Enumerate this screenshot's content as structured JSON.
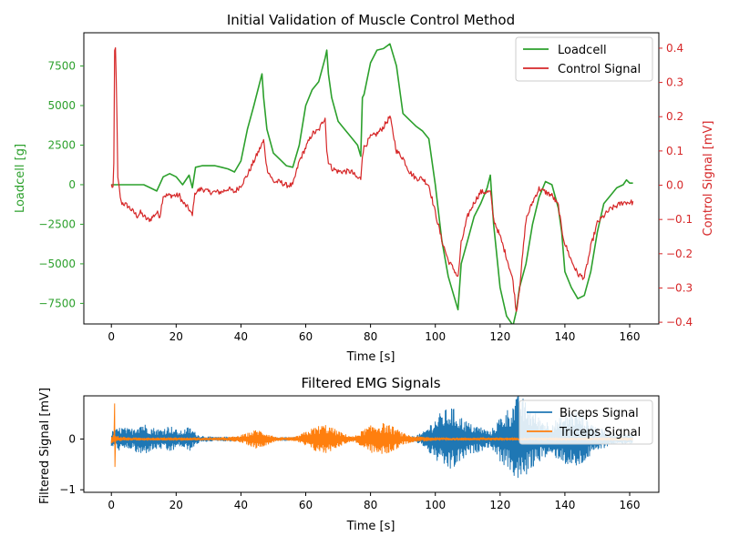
{
  "figure": {
    "colors": {
      "loadcell": "#2ca02c",
      "control": "#d62728",
      "biceps": "#1f77b4",
      "triceps": "#ff7f0e",
      "axis": "#000000"
    }
  },
  "chart_data": [
    {
      "type": "line",
      "title": "Initial Validation of Muscle Control Method",
      "xlabel": "Time [s]",
      "ylabel": "Loadcell [g]",
      "y2label": "Control Signal [mV]",
      "xlim": [
        -8.5,
        169
      ],
      "ylim": [
        -8800,
        9600
      ],
      "y2lim": [
        -0.405,
        0.445
      ],
      "xticks": [
        0,
        20,
        40,
        60,
        80,
        100,
        120,
        140,
        160
      ],
      "yticks": [
        -7500,
        -5000,
        -2500,
        0,
        2500,
        5000,
        7500
      ],
      "y2ticks": [
        -0.4,
        -0.3,
        -0.2,
        -0.1,
        0.0,
        0.1,
        0.2,
        0.3,
        0.4
      ],
      "yticklabels": [
        "−7500",
        "−5000",
        "−2500",
        "0",
        "2500",
        "5000",
        "7500"
      ],
      "y2ticklabels": [
        "−0.4",
        "−0.3",
        "−0.2",
        "−0.1",
        "0.0",
        "0.1",
        "0.2",
        "0.3",
        "0.4"
      ],
      "grid": false,
      "legend": "top-right",
      "series": [
        {
          "name": "Loadcell",
          "axis": "left",
          "x": [
            0,
            2,
            5,
            10,
            12,
            14,
            16,
            18,
            20,
            22,
            24,
            25,
            26,
            28,
            30,
            32,
            34,
            36,
            38,
            40,
            42,
            44,
            46,
            46.5,
            47,
            48,
            50,
            52,
            54,
            56,
            58,
            60,
            62,
            64,
            66,
            66.5,
            67,
            68,
            70,
            72,
            74,
            76,
            77,
            77.5,
            78,
            80,
            82,
            84,
            86,
            88,
            90,
            92,
            94,
            96,
            98,
            100,
            102,
            104,
            106,
            107,
            108,
            110,
            112,
            114,
            116,
            117,
            118,
            120,
            122,
            124,
            125,
            126,
            128,
            130,
            132,
            134,
            136,
            138,
            139,
            140,
            142,
            144,
            146,
            148,
            150,
            152,
            154,
            156,
            158,
            159,
            160,
            161
          ],
          "values": [
            0,
            0,
            0,
            0,
            -200,
            -400,
            500,
            700,
            500,
            0,
            600,
            -200,
            1100,
            1200,
            1200,
            1200,
            1100,
            1000,
            800,
            1500,
            3500,
            5000,
            6600,
            7000,
            5500,
            3500,
            2000,
            1600,
            1200,
            1100,
            2500,
            5000,
            6000,
            6500,
            8000,
            8500,
            7000,
            5500,
            4000,
            3500,
            3000,
            2500,
            1800,
            5500,
            5700,
            7700,
            8500,
            8600,
            8900,
            7500,
            4500,
            4100,
            3700,
            3400,
            2900,
            0,
            -3500,
            -5800,
            -7200,
            -7900,
            -5000,
            -3500,
            -2000,
            -1200,
            -200,
            600,
            -2500,
            -6500,
            -8300,
            -8900,
            -8000,
            -6500,
            -5000,
            -2500,
            -800,
            200,
            0,
            -1500,
            -3000,
            -5500,
            -6500,
            -7200,
            -7000,
            -5500,
            -3000,
            -1200,
            -700,
            -200,
            0,
            300,
            100,
            100
          ]
        },
        {
          "name": "Control Signal",
          "axis": "right",
          "x": [
            0,
            0.7,
            1,
            1.3,
            1.6,
            2,
            3,
            5,
            7,
            8,
            9,
            10,
            11,
            12,
            14,
            15,
            16,
            18,
            20,
            21,
            22,
            23,
            24,
            25,
            25.5,
            26,
            28,
            30,
            32,
            34,
            36,
            38,
            40,
            42,
            44,
            46,
            47,
            48,
            50,
            52,
            54,
            56,
            58,
            60,
            62,
            64,
            66,
            66.5,
            67,
            68,
            70,
            72,
            74,
            76,
            77,
            77.5,
            78,
            80,
            82,
            84,
            86,
            88,
            90,
            92,
            94,
            96,
            98,
            100,
            102,
            104,
            106,
            107,
            108,
            110,
            112,
            114,
            116,
            117,
            118,
            120,
            122,
            124,
            125,
            126,
            128,
            130,
            132,
            134,
            136,
            138,
            139,
            140,
            142,
            144,
            146,
            148,
            150,
            152,
            154,
            156,
            158,
            160,
            161
          ],
          "values": [
            0,
            -0.01,
            0.39,
            0.4,
            0.28,
            0.02,
            -0.05,
            -0.06,
            -0.08,
            -0.09,
            -0.08,
            -0.09,
            -0.1,
            -0.1,
            -0.08,
            -0.09,
            -0.03,
            -0.03,
            -0.03,
            -0.03,
            -0.05,
            -0.06,
            -0.07,
            -0.09,
            -0.04,
            -0.02,
            -0.01,
            -0.02,
            -0.02,
            -0.02,
            -0.01,
            -0.02,
            0.0,
            0.03,
            0.07,
            0.11,
            0.13,
            0.05,
            0.01,
            0.01,
            0.0,
            0.0,
            0.07,
            0.11,
            0.15,
            0.16,
            0.2,
            0.1,
            0.07,
            0.05,
            0.04,
            0.04,
            0.04,
            0.02,
            0.02,
            0.09,
            0.11,
            0.14,
            0.15,
            0.17,
            0.2,
            0.1,
            0.08,
            0.04,
            0.02,
            0.02,
            0.0,
            -0.08,
            -0.16,
            -0.22,
            -0.25,
            -0.27,
            -0.17,
            -0.09,
            -0.05,
            -0.02,
            -0.02,
            -0.02,
            -0.1,
            -0.15,
            -0.21,
            -0.28,
            -0.37,
            -0.3,
            -0.1,
            -0.05,
            -0.01,
            -0.02,
            -0.03,
            -0.06,
            -0.13,
            -0.17,
            -0.22,
            -0.26,
            -0.27,
            -0.18,
            -0.11,
            -0.09,
            -0.07,
            -0.06,
            -0.05,
            -0.05,
            -0.05
          ]
        }
      ]
    },
    {
      "type": "line",
      "title": "Filtered EMG Signals",
      "xlabel": "Time [s]",
      "ylabel": "Filtered Signal [mV]",
      "xlim": [
        -8.5,
        169
      ],
      "ylim": [
        -1.05,
        0.85
      ],
      "xticks": [
        0,
        20,
        40,
        60,
        80,
        100,
        120,
        140,
        160
      ],
      "yticks": [
        -1,
        0
      ],
      "yticklabels": [
        "−1",
        "0"
      ],
      "grid": false,
      "legend": "top-right",
      "series": [
        {
          "name": "Biceps Signal",
          "x": [
            0,
            3,
            6,
            9,
            12,
            15,
            18,
            21,
            24,
            27,
            30,
            33,
            36,
            39,
            42,
            45,
            48,
            51,
            54,
            57,
            60,
            63,
            66,
            69,
            72,
            75,
            78,
            81,
            84,
            87,
            90,
            93,
            96,
            99,
            102,
            105,
            108,
            111,
            114,
            117,
            120,
            123,
            126,
            129,
            132,
            135,
            138,
            141,
            144,
            147,
            150,
            153,
            156,
            159,
            161
          ],
          "envelope": [
            0.15,
            0.25,
            0.2,
            0.35,
            0.25,
            0.2,
            0.28,
            0.15,
            0.25,
            0.08,
            0.05,
            0.04,
            0.05,
            0.05,
            0.03,
            0.02,
            0.02,
            0.02,
            0.02,
            0.02,
            0.02,
            0.02,
            0.02,
            0.02,
            0.02,
            0.02,
            0.02,
            0.02,
            0.02,
            0.02,
            0.04,
            0.06,
            0.12,
            0.35,
            0.55,
            0.65,
            0.45,
            0.3,
            0.25,
            0.15,
            0.45,
            0.65,
            0.9,
            0.65,
            0.45,
            0.35,
            0.4,
            0.55,
            0.6,
            0.4,
            0.25,
            0.15,
            0.1,
            0.1,
            0.1
          ]
        },
        {
          "name": "Triceps Signal",
          "x": [
            0,
            3,
            6,
            9,
            12,
            15,
            18,
            21,
            24,
            27,
            30,
            33,
            36,
            39,
            42,
            45,
            48,
            51,
            54,
            57,
            60,
            63,
            66,
            69,
            72,
            75,
            78,
            81,
            84,
            87,
            90,
            93,
            96,
            99,
            102,
            105,
            108,
            111,
            114,
            117,
            120,
            123,
            126,
            129,
            132,
            135,
            138,
            141,
            144,
            147,
            150,
            153,
            156,
            159,
            161
          ],
          "envelope": [
            0.1,
            0.05,
            0.03,
            0.03,
            0.03,
            0.03,
            0.03,
            0.03,
            0.03,
            0.03,
            0.03,
            0.03,
            0.04,
            0.06,
            0.12,
            0.2,
            0.12,
            0.04,
            0.03,
            0.05,
            0.15,
            0.25,
            0.3,
            0.2,
            0.1,
            0.05,
            0.2,
            0.3,
            0.32,
            0.25,
            0.12,
            0.06,
            0.05,
            0.04,
            0.03,
            0.03,
            0.03,
            0.03,
            0.03,
            0.03,
            0.03,
            0.03,
            0.03,
            0.03,
            0.03,
            0.03,
            0.03,
            0.03,
            0.03,
            0.03,
            0.03,
            0.03,
            0.03,
            0.03,
            0.03
          ],
          "spike": {
            "x": 1,
            "max": 0.7,
            "min": -0.55
          }
        }
      ]
    }
  ]
}
